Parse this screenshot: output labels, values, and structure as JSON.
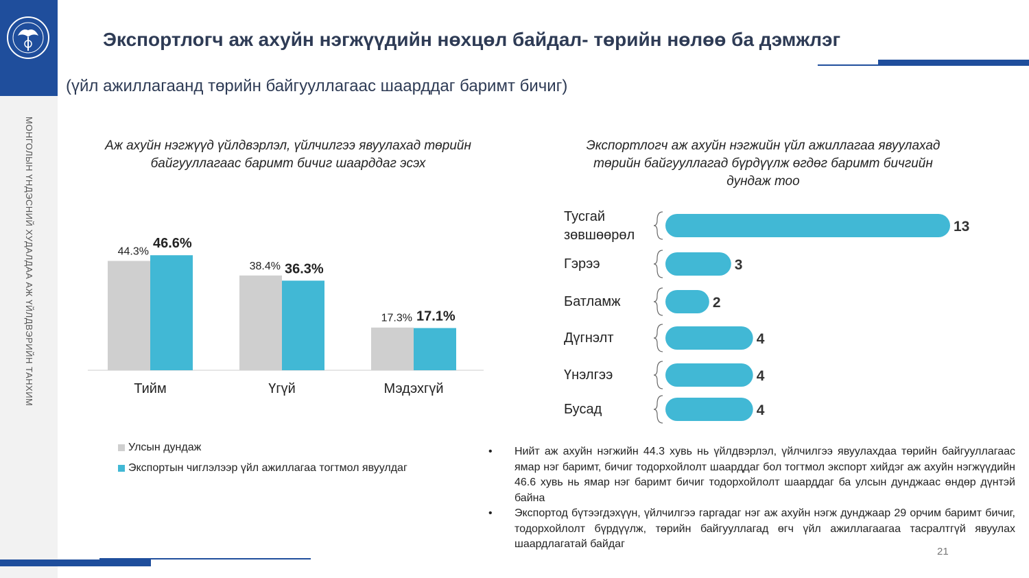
{
  "header": {
    "title": "Экспортлогч аж ахуйн нэгжүүдийн нөхцөл байдал- төрийн нөлөө ба дэмжлэг",
    "subtitle": "(үйл ажиллагаанд төрийн байгууллагаас шаарддаг баримт бичиг)"
  },
  "sidebar": {
    "vertical_text": "МОНГОЛЫН ҮНДЭСНИЙ ХУДАЛДАА АЖ ҮЙЛДВЭРИЙН ТАНХИМ",
    "logo_icon": "chamber-emblem-icon"
  },
  "colors": {
    "accent": "#1f4e9c",
    "gray": "#cfcfcf",
    "teal": "#41b8d5"
  },
  "chart_data": [
    {
      "type": "bar",
      "title": "Аж ахуйн нэгжүүд үйлдвэрлэл, үйлчилгээ явуулахад төрийн байгууллагаас баримт бичиг шаарддаг эсэх",
      "categories": [
        "Тийм",
        "Үгүй",
        "Мэдэхгүй"
      ],
      "series": [
        {
          "name": "Улсын дундаж",
          "values": [
            44.3,
            38.4,
            17.3
          ],
          "labels": [
            "44.3%",
            "38.4%",
            "17.3%"
          ],
          "color": "#cfcfcf"
        },
        {
          "name": "Экспортын чиглэлээр үйл ажиллагаа тогтмол  явуулдаг",
          "values": [
            46.6,
            36.3,
            17.1
          ],
          "labels": [
            "46.6%",
            "36.3%",
            "17.1%"
          ],
          "color": "#41b8d5"
        }
      ],
      "ylim": [
        0,
        50
      ],
      "grid": false,
      "legend": "bottom-left"
    },
    {
      "type": "bar",
      "orientation": "horizontal",
      "title": "Экспортлогч аж ахуйн нэгжийн үйл ажиллагаа явуулахад төрийн байгууллагад бүрдүүлж өгдөг баримт бичгийн дундаж тоо",
      "categories": [
        "Тусгай зөвшөөрөл",
        "Гэрээ",
        "Батламж",
        "Дүгнэлт",
        "Үнэлгээ",
        "Бусад"
      ],
      "category_lines": [
        [
          "Тусгай",
          "зөвшөөрөл"
        ],
        [
          "Гэрээ"
        ],
        [
          "Батламж"
        ],
        [
          "Дүгнэлт"
        ],
        [
          "Үнэлгээ"
        ],
        [
          "Бусад"
        ]
      ],
      "values": [
        13,
        3,
        2,
        4,
        4,
        4
      ],
      "labels": [
        "13",
        "3",
        "2",
        "4",
        "4",
        "4"
      ],
      "color": "#41b8d5",
      "xlim": [
        0,
        13
      ],
      "grid": false
    }
  ],
  "bullets": [
    "Нийт аж ахуйн нэгжийн 44.3 хувь нь үйлдвэрлэл, үйлчилгээ явуулахдаа төрийн байгууллагаас ямар нэг баримт, бичиг тодорхойлолт шаарддаг бол тогтмол экспорт хийдэг аж ахуйн нэгжүүдийн 46.6 хувь нь ямар нэг баримт бичиг тодорхойлолт шаарддаг ба улсын дунджаас өндөр дүнтэй байна",
    "Экспортод бүтээгдэхүүн, үйлчилгээ гаргадаг нэг аж ахуйн нэгж дунджаар 29 орчим баримт бичиг, тодорхойлолт бүрдүүлж, төрийн байгууллагад өгч үйл ажиллагаагаа тасралтгүй явуулах шаардлагатай байдаг"
  ],
  "bullet_symbol": "•",
  "page_number": "21"
}
